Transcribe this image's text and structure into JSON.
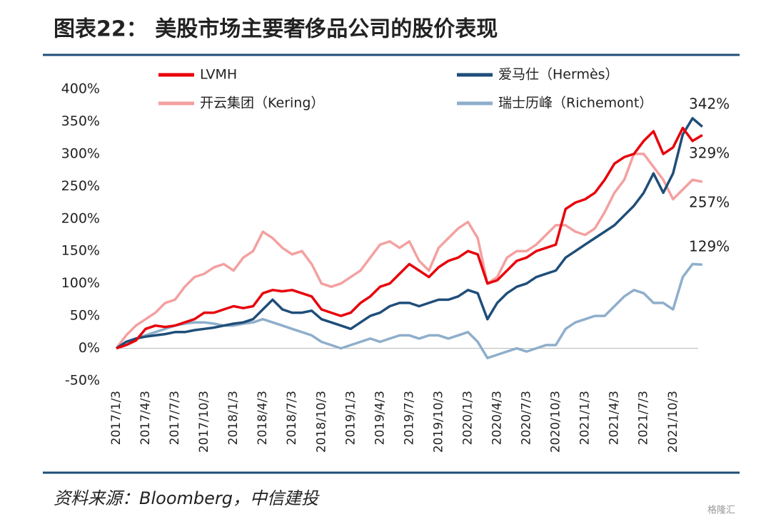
{
  "header": {
    "title": "图表22：  美股市场主要奢侈品公司的股价表现"
  },
  "chart_data": {
    "type": "line",
    "categories": [
      "2017/1/3",
      null,
      null,
      "2017/4/3",
      null,
      null,
      "2017/7/3",
      null,
      null,
      "2017/10/3",
      null,
      null,
      "2018/1/3",
      null,
      null,
      "2018/4/3",
      null,
      null,
      "2018/7/3",
      null,
      null,
      "2018/10/3",
      null,
      null,
      "2019/1/3",
      null,
      null,
      "2019/4/3",
      null,
      null,
      "2019/7/3",
      null,
      null,
      "2019/10/3",
      null,
      null,
      "2020/1/3",
      null,
      null,
      "2020/4/3",
      null,
      null,
      "2020/7/3",
      null,
      null,
      "2020/10/3",
      null,
      null,
      "2021/1/3",
      null,
      null,
      "2021/4/3",
      null,
      null,
      "2021/7/3",
      null,
      null,
      "2021/10/3",
      null,
      null,
      null
    ],
    "series": [
      {
        "name": "LVMH",
        "color": "#e8000b",
        "values": [
          0,
          5,
          12,
          30,
          35,
          33,
          35,
          40,
          45,
          55,
          55,
          60,
          65,
          62,
          65,
          85,
          90,
          88,
          90,
          85,
          80,
          60,
          55,
          50,
          55,
          70,
          80,
          95,
          100,
          115,
          130,
          120,
          110,
          125,
          135,
          140,
          150,
          145,
          100,
          105,
          120,
          135,
          140,
          150,
          155,
          160,
          215,
          225,
          230,
          240,
          260,
          285,
          295,
          300,
          320,
          335,
          300,
          310,
          340,
          320,
          329
        ]
      },
      {
        "name": "爱马仕（Hermès）",
        "color": "#1f4e79",
        "values": [
          0,
          10,
          15,
          18,
          20,
          22,
          25,
          25,
          28,
          30,
          32,
          35,
          38,
          40,
          45,
          60,
          75,
          60,
          55,
          55,
          58,
          45,
          40,
          35,
          30,
          40,
          50,
          55,
          65,
          70,
          70,
          65,
          70,
          75,
          75,
          80,
          90,
          85,
          45,
          70,
          85,
          95,
          100,
          110,
          115,
          120,
          140,
          150,
          160,
          170,
          180,
          190,
          205,
          220,
          240,
          270,
          240,
          270,
          330,
          355,
          342
        ]
      },
      {
        "name": "开云集团（Kering）",
        "color": "#f4a0a0",
        "values": [
          0,
          20,
          35,
          45,
          55,
          70,
          75,
          95,
          110,
          115,
          125,
          130,
          120,
          140,
          150,
          180,
          170,
          155,
          145,
          150,
          130,
          100,
          95,
          100,
          110,
          120,
          140,
          160,
          165,
          155,
          165,
          135,
          120,
          155,
          170,
          185,
          195,
          170,
          100,
          110,
          140,
          150,
          150,
          160,
          175,
          190,
          190,
          180,
          175,
          185,
          210,
          240,
          260,
          300,
          300,
          280,
          260,
          230,
          245,
          260,
          257
        ]
      },
      {
        "name": "瑞士历峰（Richemont）",
        "color": "#8eaecb",
        "values": [
          0,
          10,
          15,
          20,
          25,
          30,
          35,
          38,
          40,
          40,
          38,
          35,
          35,
          38,
          40,
          45,
          40,
          35,
          30,
          25,
          20,
          10,
          5,
          0,
          5,
          10,
          15,
          10,
          15,
          20,
          20,
          15,
          20,
          20,
          15,
          20,
          25,
          10,
          -15,
          -10,
          -5,
          0,
          -5,
          0,
          5,
          5,
          30,
          40,
          45,
          50,
          50,
          65,
          80,
          90,
          85,
          70,
          70,
          60,
          110,
          130,
          129
        ]
      }
    ],
    "end_labels": [
      {
        "value": 342,
        "label": "342%"
      },
      {
        "value": 329,
        "label": "329%"
      },
      {
        "value": 257,
        "label": "257%"
      },
      {
        "value": 129,
        "label": "129%"
      }
    ],
    "ylim": [
      -50,
      400
    ],
    "yticks": [
      {
        "value": -50,
        "label": "-50%"
      },
      {
        "value": 0,
        "label": "0%"
      },
      {
        "value": 50,
        "label": "50%"
      },
      {
        "value": 100,
        "label": "100%"
      },
      {
        "value": 150,
        "label": "150%"
      },
      {
        "value": 200,
        "label": "200%"
      },
      {
        "value": 250,
        "label": "250%"
      },
      {
        "value": 300,
        "label": "300%"
      },
      {
        "value": 350,
        "label": "350%"
      },
      {
        "value": 400,
        "label": "400%"
      }
    ]
  },
  "footer": {
    "source": "资料来源：Bloomberg，中信建投",
    "watermark": "格隆汇"
  }
}
